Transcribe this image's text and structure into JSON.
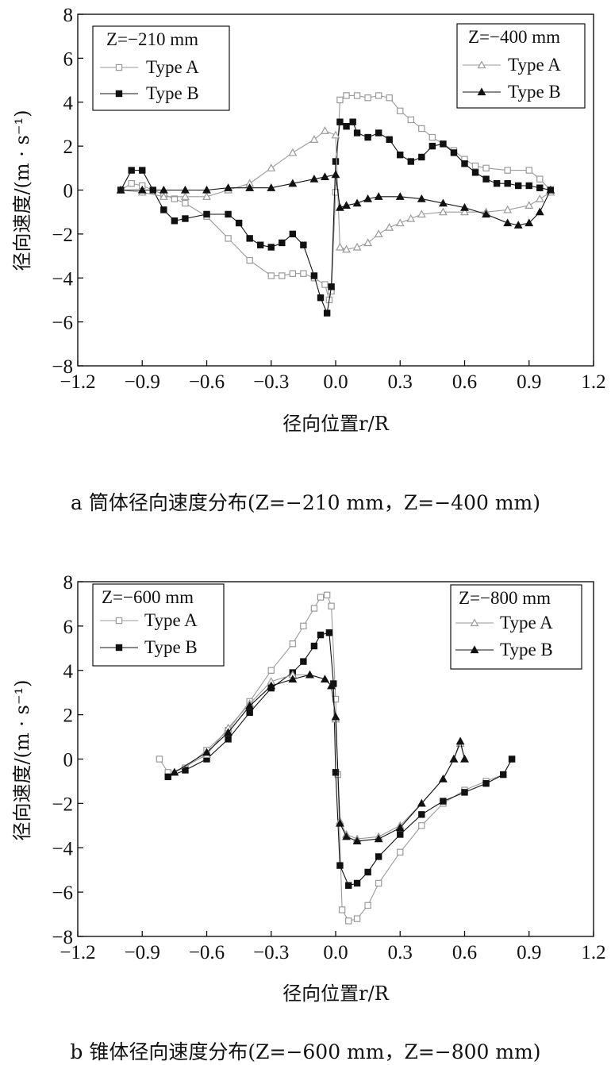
{
  "chart_data": [
    {
      "type": "line",
      "xlabel": "径向位置r/R",
      "ylabel": "径向速度/(m · s⁻¹)",
      "xlim": [
        -1.2,
        1.2
      ],
      "ylim": [
        -8,
        8
      ],
      "xticks": [
        "−1.2",
        "−0.9",
        "−0.6",
        "−0.3",
        "0.0",
        "0.3",
        "0.6",
        "0.9",
        "1.2"
      ],
      "yticks": [
        "8",
        "6",
        "4",
        "2",
        "0",
        "−2",
        "−4",
        "−6",
        "−8"
      ],
      "caption": "a 筒体径向速度分布(Z=−210 mm，Z=−400 mm)",
      "legends": [
        {
          "title": "Z=−210 mm",
          "placement": "top-left",
          "entries": [
            "Type A",
            "Type B"
          ]
        },
        {
          "title": "Z=−400 mm",
          "placement": "top-right",
          "entries": [
            "Type A",
            "Type B"
          ]
        }
      ],
      "series": [
        {
          "name": "Type A",
          "group": "Z=−210 mm",
          "marker": "open-square",
          "color": "#9a9a9a",
          "points": [
            [
              -1.0,
              0.0
            ],
            [
              -0.95,
              0.3
            ],
            [
              -0.9,
              0.2
            ],
            [
              -0.8,
              -0.2
            ],
            [
              -0.75,
              -0.4
            ],
            [
              -0.7,
              -0.6
            ],
            [
              -0.6,
              -1.2
            ],
            [
              -0.5,
              -2.2
            ],
            [
              -0.4,
              -3.2
            ],
            [
              -0.3,
              -3.9
            ],
            [
              -0.25,
              -3.9
            ],
            [
              -0.2,
              -3.8
            ],
            [
              -0.15,
              -3.8
            ],
            [
              -0.1,
              -4.0
            ],
            [
              -0.05,
              -4.3
            ],
            [
              -0.03,
              -5.0
            ],
            [
              -0.02,
              -4.6
            ],
            [
              0.0,
              -0.1
            ],
            [
              0.02,
              4.1
            ],
            [
              0.05,
              4.3
            ],
            [
              0.1,
              4.3
            ],
            [
              0.15,
              4.2
            ],
            [
              0.2,
              4.3
            ],
            [
              0.25,
              4.2
            ],
            [
              0.3,
              3.6
            ],
            [
              0.35,
              3.2
            ],
            [
              0.4,
              2.8
            ],
            [
              0.45,
              2.4
            ],
            [
              0.5,
              2.1
            ],
            [
              0.55,
              1.8
            ],
            [
              0.6,
              1.4
            ],
            [
              0.65,
              1.1
            ],
            [
              0.7,
              1.0
            ],
            [
              0.8,
              0.9
            ],
            [
              0.9,
              0.9
            ],
            [
              0.95,
              0.5
            ],
            [
              1.0,
              0.0
            ]
          ]
        },
        {
          "name": "Type B",
          "group": "Z=−210 mm",
          "marker": "filled-square",
          "color": "#111111",
          "points": [
            [
              -1.0,
              0.0
            ],
            [
              -0.95,
              0.9
            ],
            [
              -0.9,
              0.9
            ],
            [
              -0.85,
              0.0
            ],
            [
              -0.8,
              -0.9
            ],
            [
              -0.75,
              -1.4
            ],
            [
              -0.7,
              -1.3
            ],
            [
              -0.6,
              -1.1
            ],
            [
              -0.5,
              -1.1
            ],
            [
              -0.45,
              -1.5
            ],
            [
              -0.4,
              -2.2
            ],
            [
              -0.35,
              -2.5
            ],
            [
              -0.3,
              -2.6
            ],
            [
              -0.25,
              -2.4
            ],
            [
              -0.2,
              -2.0
            ],
            [
              -0.15,
              -2.5
            ],
            [
              -0.1,
              -3.9
            ],
            [
              -0.07,
              -4.9
            ],
            [
              -0.04,
              -5.6
            ],
            [
              -0.02,
              -4.4
            ],
            [
              0.0,
              1.3
            ],
            [
              0.02,
              3.1
            ],
            [
              0.05,
              2.9
            ],
            [
              0.08,
              3.1
            ],
            [
              0.1,
              2.6
            ],
            [
              0.15,
              2.4
            ],
            [
              0.2,
              2.6
            ],
            [
              0.25,
              2.3
            ],
            [
              0.3,
              1.6
            ],
            [
              0.35,
              1.3
            ],
            [
              0.4,
              1.5
            ],
            [
              0.45,
              2.0
            ],
            [
              0.5,
              2.1
            ],
            [
              0.55,
              1.7
            ],
            [
              0.6,
              1.2
            ],
            [
              0.65,
              0.8
            ],
            [
              0.7,
              0.5
            ],
            [
              0.75,
              0.3
            ],
            [
              0.8,
              0.3
            ],
            [
              0.85,
              0.2
            ],
            [
              0.9,
              0.2
            ],
            [
              0.95,
              0.1
            ],
            [
              1.0,
              0.0
            ]
          ]
        },
        {
          "name": "Type A",
          "group": "Z=−400 mm",
          "marker": "open-triangle",
          "color": "#9a9a9a",
          "points": [
            [
              -1.0,
              0.0
            ],
            [
              -0.9,
              -0.1
            ],
            [
              -0.8,
              -0.3
            ],
            [
              -0.7,
              -0.3
            ],
            [
              -0.6,
              -0.3
            ],
            [
              -0.5,
              0.0
            ],
            [
              -0.4,
              0.3
            ],
            [
              -0.3,
              1.0
            ],
            [
              -0.2,
              1.7
            ],
            [
              -0.1,
              2.3
            ],
            [
              -0.05,
              2.7
            ],
            [
              0.0,
              2.5
            ],
            [
              0.02,
              -2.6
            ],
            [
              0.05,
              -2.7
            ],
            [
              0.1,
              -2.6
            ],
            [
              0.15,
              -2.4
            ],
            [
              0.2,
              -2.0
            ],
            [
              0.25,
              -1.7
            ],
            [
              0.3,
              -1.5
            ],
            [
              0.35,
              -1.3
            ],
            [
              0.4,
              -1.1
            ],
            [
              0.5,
              -1.0
            ],
            [
              0.6,
              -1.0
            ],
            [
              0.7,
              -1.0
            ],
            [
              0.8,
              -0.9
            ],
            [
              0.9,
              -0.7
            ],
            [
              0.95,
              -0.4
            ],
            [
              1.0,
              -0.1
            ]
          ]
        },
        {
          "name": "Type B",
          "group": "Z=−400 mm",
          "marker": "filled-triangle",
          "color": "#111111",
          "points": [
            [
              -1.0,
              0.0
            ],
            [
              -0.9,
              0.0
            ],
            [
              -0.8,
              0.0
            ],
            [
              -0.7,
              0.0
            ],
            [
              -0.6,
              0.0
            ],
            [
              -0.5,
              0.1
            ],
            [
              -0.4,
              0.1
            ],
            [
              -0.3,
              0.1
            ],
            [
              -0.2,
              0.3
            ],
            [
              -0.1,
              0.5
            ],
            [
              -0.05,
              0.6
            ],
            [
              0.0,
              0.7
            ],
            [
              0.02,
              -0.8
            ],
            [
              0.05,
              -0.7
            ],
            [
              0.1,
              -0.6
            ],
            [
              0.15,
              -0.4
            ],
            [
              0.2,
              -0.3
            ],
            [
              0.3,
              -0.3
            ],
            [
              0.4,
              -0.4
            ],
            [
              0.5,
              -0.6
            ],
            [
              0.6,
              -0.8
            ],
            [
              0.7,
              -1.1
            ],
            [
              0.8,
              -1.5
            ],
            [
              0.85,
              -1.6
            ],
            [
              0.9,
              -1.5
            ],
            [
              0.95,
              -1.0
            ],
            [
              1.0,
              0.0
            ]
          ]
        }
      ]
    },
    {
      "type": "line",
      "xlabel": "径向位置r/R",
      "ylabel": "径向速度/(m · s⁻¹)",
      "xlim": [
        -1.2,
        1.2
      ],
      "ylim": [
        -8,
        8
      ],
      "xticks": [
        "−1.2",
        "−0.9",
        "−0.6",
        "−0.3",
        "0.0",
        "0.3",
        "0.6",
        "0.9",
        "1.2"
      ],
      "yticks": [
        "8",
        "6",
        "4",
        "2",
        "0",
        "−2",
        "−4",
        "−6",
        "−8"
      ],
      "caption": "b 锥体径向速度分布(Z=−600 mm，Z=−800 mm)",
      "legends": [
        {
          "title": "Z=−600 mm",
          "placement": "top-left",
          "entries": [
            "Type A",
            "Type B"
          ]
        },
        {
          "title": "Z=−800 mm",
          "placement": "top-right",
          "entries": [
            "Type A",
            "Type B"
          ]
        }
      ],
      "series": [
        {
          "name": "Type A",
          "group": "Z=−600 mm",
          "marker": "open-square",
          "color": "#9a9a9a",
          "points": [
            [
              -0.82,
              0.0
            ],
            [
              -0.78,
              -0.6
            ],
            [
              -0.7,
              -0.4
            ],
            [
              -0.6,
              0.4
            ],
            [
              -0.5,
              1.3
            ],
            [
              -0.4,
              2.6
            ],
            [
              -0.3,
              4.0
            ],
            [
              -0.2,
              5.2
            ],
            [
              -0.15,
              6.0
            ],
            [
              -0.1,
              6.8
            ],
            [
              -0.07,
              7.3
            ],
            [
              -0.04,
              7.4
            ],
            [
              -0.02,
              6.9
            ],
            [
              0.0,
              2.7
            ],
            [
              0.01,
              -0.7
            ],
            [
              0.03,
              -6.8
            ],
            [
              0.06,
              -7.3
            ],
            [
              0.1,
              -7.2
            ],
            [
              0.15,
              -6.6
            ],
            [
              0.2,
              -5.6
            ],
            [
              0.3,
              -4.2
            ],
            [
              0.4,
              -3.0
            ],
            [
              0.5,
              -2.0
            ],
            [
              0.6,
              -1.4
            ],
            [
              0.7,
              -1.0
            ],
            [
              0.78,
              -0.7
            ],
            [
              0.82,
              0.0
            ]
          ]
        },
        {
          "name": "Type B",
          "group": "Z=−600 mm",
          "marker": "filled-square",
          "color": "#111111",
          "points": [
            [
              -0.78,
              -0.8
            ],
            [
              -0.7,
              -0.5
            ],
            [
              -0.6,
              0.0
            ],
            [
              -0.5,
              0.9
            ],
            [
              -0.4,
              2.1
            ],
            [
              -0.3,
              3.2
            ],
            [
              -0.2,
              3.9
            ],
            [
              -0.15,
              4.4
            ],
            [
              -0.1,
              5.1
            ],
            [
              -0.07,
              5.6
            ],
            [
              -0.03,
              5.7
            ],
            [
              -0.01,
              3.4
            ],
            [
              0.0,
              -0.6
            ],
            [
              0.02,
              -4.8
            ],
            [
              0.06,
              -5.7
            ],
            [
              0.1,
              -5.6
            ],
            [
              0.15,
              -5.1
            ],
            [
              0.2,
              -4.4
            ],
            [
              0.3,
              -3.4
            ],
            [
              0.4,
              -2.5
            ],
            [
              0.5,
              -1.9
            ],
            [
              0.6,
              -1.5
            ],
            [
              0.7,
              -1.1
            ],
            [
              0.78,
              -0.7
            ],
            [
              0.82,
              0.0
            ]
          ]
        },
        {
          "name": "Type A",
          "group": "Z=−800 mm",
          "marker": "open-triangle",
          "color": "#9a9a9a",
          "points": [
            [
              -0.75,
              -0.6
            ],
            [
              -0.6,
              0.2
            ],
            [
              -0.5,
              1.4
            ],
            [
              -0.4,
              2.5
            ],
            [
              -0.3,
              3.5
            ],
            [
              -0.2,
              3.8
            ],
            [
              -0.12,
              3.8
            ],
            [
              -0.05,
              3.6
            ],
            [
              -0.02,
              3.3
            ],
            [
              0.0,
              1.8
            ],
            [
              0.02,
              -2.8
            ],
            [
              0.05,
              -3.4
            ],
            [
              0.1,
              -3.6
            ],
            [
              0.2,
              -3.5
            ],
            [
              0.3,
              -3.0
            ],
            [
              0.4,
              -2.0
            ],
            [
              0.5,
              -0.9
            ],
            [
              0.55,
              0.0
            ],
            [
              0.58,
              0.7
            ],
            [
              0.6,
              0.0
            ]
          ]
        },
        {
          "name": "Type B",
          "group": "Z=−800 mm",
          "marker": "filled-triangle",
          "color": "#111111",
          "points": [
            [
              -0.75,
              -0.6
            ],
            [
              -0.6,
              0.3
            ],
            [
              -0.5,
              1.2
            ],
            [
              -0.4,
              2.4
            ],
            [
              -0.3,
              3.3
            ],
            [
              -0.2,
              3.6
            ],
            [
              -0.12,
              3.8
            ],
            [
              -0.05,
              3.6
            ],
            [
              -0.02,
              3.3
            ],
            [
              0.0,
              1.9
            ],
            [
              0.02,
              -2.9
            ],
            [
              0.05,
              -3.5
            ],
            [
              0.1,
              -3.7
            ],
            [
              0.2,
              -3.6
            ],
            [
              0.3,
              -3.1
            ],
            [
              0.4,
              -2.0
            ],
            [
              0.5,
              -0.9
            ],
            [
              0.55,
              0.0
            ],
            [
              0.58,
              0.8
            ],
            [
              0.6,
              0.0
            ]
          ]
        }
      ]
    }
  ]
}
